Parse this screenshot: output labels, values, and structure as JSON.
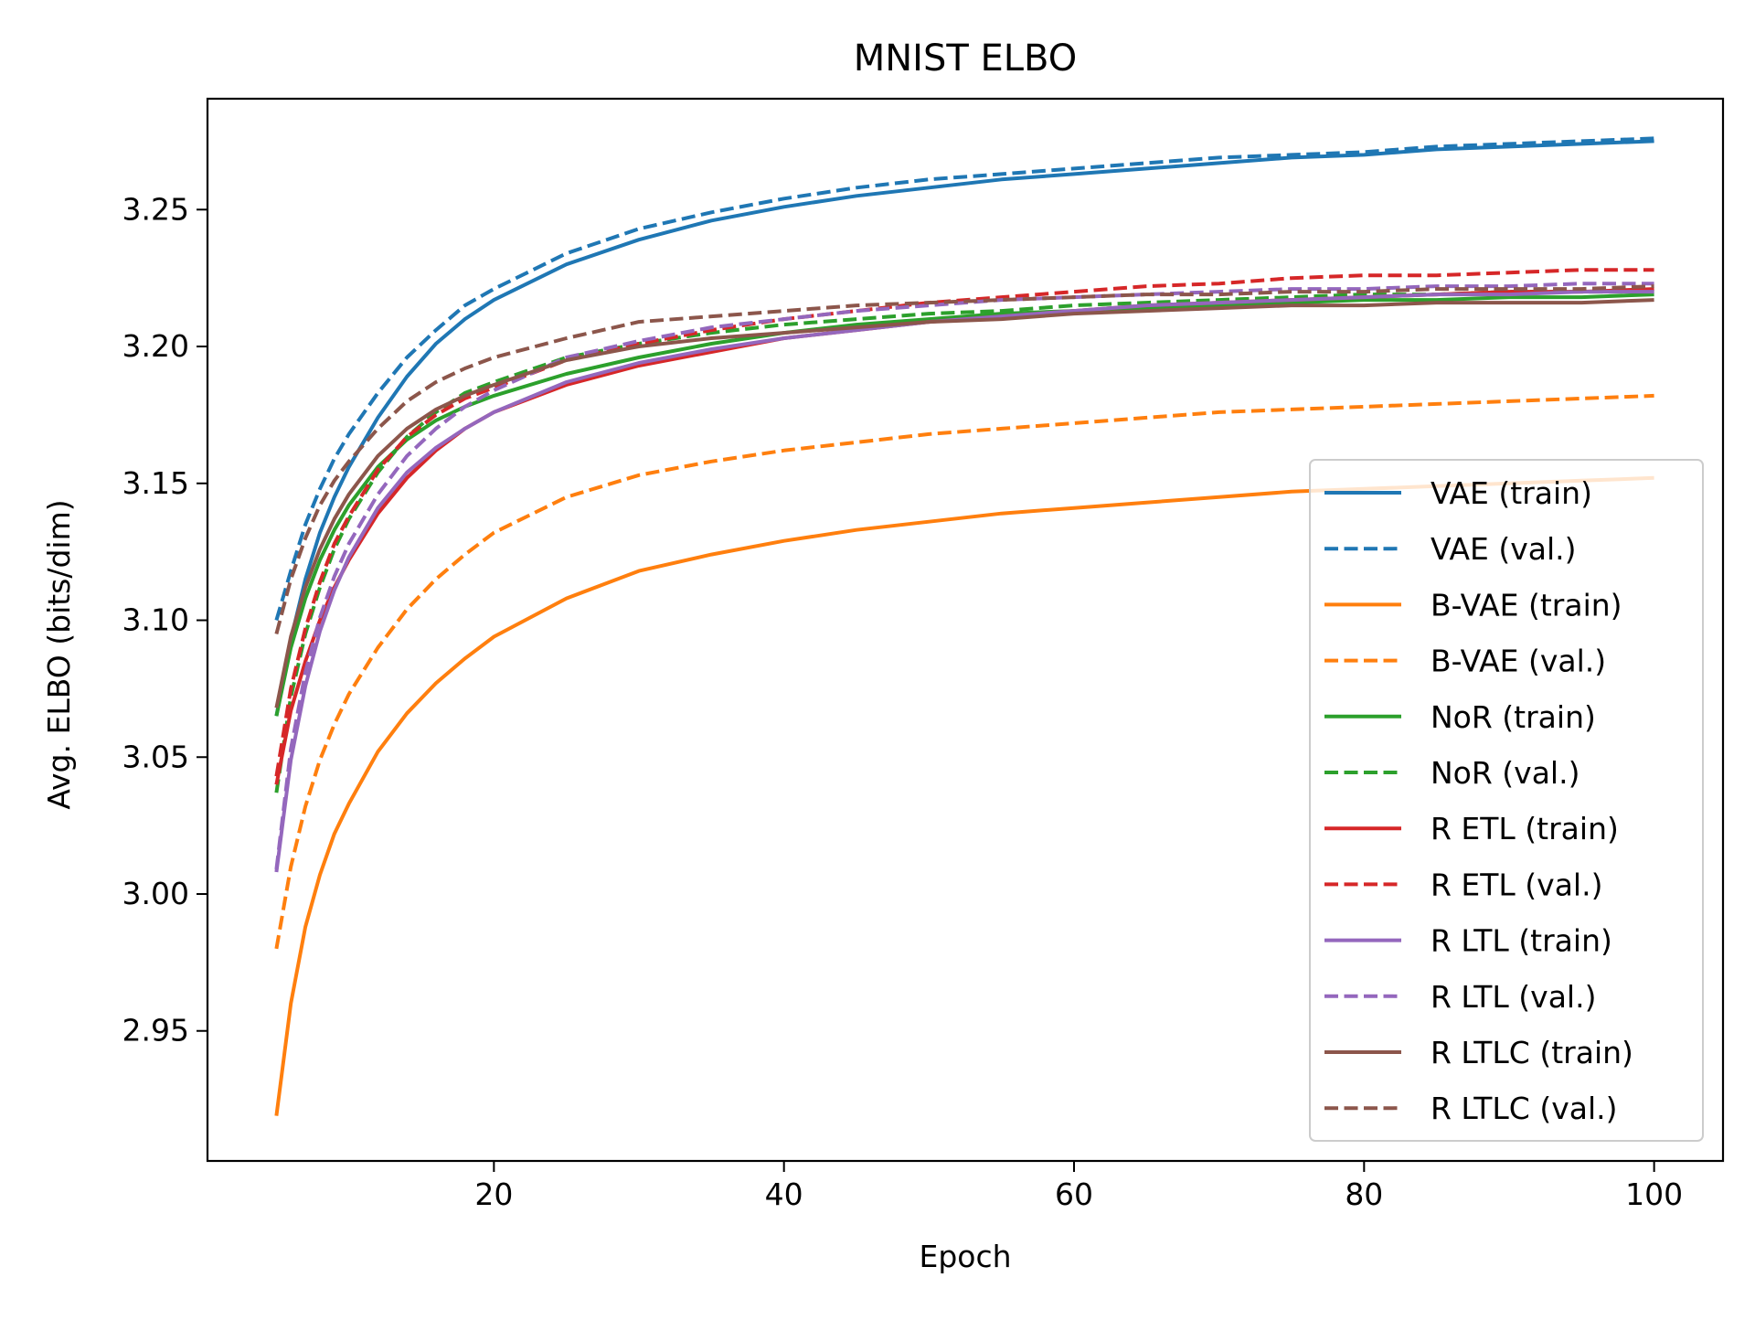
{
  "chart_data": {
    "type": "line",
    "title": "MNIST ELBO",
    "xlabel": "Epoch",
    "ylabel": "Avg. ELBO (bits/dim)",
    "xlim": [
      0.25,
      104.75
    ],
    "ylim": [
      2.9025,
      3.2905
    ],
    "xticks": [
      20,
      40,
      60,
      80,
      100
    ],
    "yticks": [
      2.95,
      3.0,
      3.05,
      3.1,
      3.15,
      3.2,
      3.25
    ],
    "xtick_labels": [
      "20",
      "40",
      "60",
      "80",
      "100"
    ],
    "ytick_labels": [
      "2.95",
      "3.00",
      "3.05",
      "3.10",
      "3.15",
      "3.20",
      "3.25"
    ],
    "grid": false,
    "legend_position": "center-right",
    "x": [
      5,
      6,
      7,
      8,
      9,
      10,
      12,
      14,
      16,
      18,
      20,
      25,
      30,
      35,
      40,
      45,
      50,
      55,
      60,
      65,
      70,
      75,
      80,
      85,
      90,
      95,
      100
    ],
    "series": [
      {
        "name": "VAE (train)",
        "color": "#1f77b4",
        "dash": "solid",
        "values": [
          3.065,
          3.093,
          3.115,
          3.132,
          3.145,
          3.156,
          3.174,
          3.189,
          3.201,
          3.21,
          3.217,
          3.23,
          3.239,
          3.246,
          3.251,
          3.255,
          3.258,
          3.261,
          3.263,
          3.265,
          3.267,
          3.269,
          3.27,
          3.272,
          3.273,
          3.274,
          3.275
        ]
      },
      {
        "name": "VAE (val.)",
        "color": "#1f77b4",
        "dash": "dashed",
        "values": [
          3.1,
          3.118,
          3.135,
          3.148,
          3.159,
          3.168,
          3.183,
          3.196,
          3.206,
          3.215,
          3.221,
          3.234,
          3.243,
          3.249,
          3.254,
          3.258,
          3.261,
          3.263,
          3.265,
          3.267,
          3.269,
          3.27,
          3.271,
          3.273,
          3.274,
          3.275,
          3.276
        ]
      },
      {
        "name": "B-VAE (train)",
        "color": "#ff7f0e",
        "dash": "solid",
        "values": [
          2.919,
          2.96,
          2.988,
          3.007,
          3.022,
          3.033,
          3.052,
          3.066,
          3.077,
          3.086,
          3.094,
          3.108,
          3.118,
          3.124,
          3.129,
          3.133,
          3.136,
          3.139,
          3.141,
          3.143,
          3.145,
          3.147,
          3.148,
          3.149,
          3.15,
          3.151,
          3.152
        ]
      },
      {
        "name": "B-VAE (val.)",
        "color": "#ff7f0e",
        "dash": "dashed",
        "values": [
          2.98,
          3.01,
          3.032,
          3.049,
          3.062,
          3.073,
          3.09,
          3.104,
          3.115,
          3.124,
          3.132,
          3.145,
          3.153,
          3.158,
          3.162,
          3.165,
          3.168,
          3.17,
          3.172,
          3.174,
          3.176,
          3.177,
          3.178,
          3.179,
          3.18,
          3.181,
          3.182
        ]
      },
      {
        "name": "NoR (train)",
        "color": "#2ca02c",
        "dash": "solid",
        "values": [
          3.065,
          3.09,
          3.108,
          3.122,
          3.133,
          3.142,
          3.156,
          3.166,
          3.173,
          3.178,
          3.182,
          3.19,
          3.196,
          3.201,
          3.205,
          3.208,
          3.21,
          3.212,
          3.213,
          3.214,
          3.215,
          3.216,
          3.217,
          3.217,
          3.218,
          3.218,
          3.219
        ]
      },
      {
        "name": "NoR (val.)",
        "color": "#2ca02c",
        "dash": "dashed",
        "values": [
          3.037,
          3.072,
          3.095,
          3.112,
          3.126,
          3.137,
          3.154,
          3.167,
          3.176,
          3.183,
          3.187,
          3.196,
          3.201,
          3.205,
          3.208,
          3.21,
          3.212,
          3.213,
          3.215,
          3.216,
          3.217,
          3.218,
          3.219,
          3.219,
          3.22,
          3.22,
          3.22
        ]
      },
      {
        "name": "R ETL (train)",
        "color": "#d62728",
        "dash": "solid",
        "values": [
          3.04,
          3.067,
          3.085,
          3.1,
          3.112,
          3.122,
          3.139,
          3.152,
          3.162,
          3.17,
          3.176,
          3.186,
          3.193,
          3.198,
          3.203,
          3.206,
          3.209,
          3.211,
          3.213,
          3.215,
          3.216,
          3.217,
          3.218,
          3.219,
          3.22,
          3.22,
          3.221
        ]
      },
      {
        "name": "R ETL (val.)",
        "color": "#d62728",
        "dash": "dashed",
        "values": [
          3.043,
          3.075,
          3.097,
          3.114,
          3.128,
          3.138,
          3.155,
          3.167,
          3.175,
          3.181,
          3.185,
          3.195,
          3.201,
          3.206,
          3.21,
          3.213,
          3.216,
          3.218,
          3.22,
          3.222,
          3.223,
          3.225,
          3.226,
          3.226,
          3.227,
          3.228,
          3.228
        ]
      },
      {
        "name": "R LTL (train)",
        "color": "#9467bd",
        "dash": "solid",
        "values": [
          3.008,
          3.049,
          3.076,
          3.096,
          3.111,
          3.123,
          3.141,
          3.154,
          3.163,
          3.17,
          3.176,
          3.187,
          3.194,
          3.199,
          3.203,
          3.206,
          3.209,
          3.211,
          3.213,
          3.215,
          3.216,
          3.217,
          3.218,
          3.219,
          3.219,
          3.22,
          3.22
        ]
      },
      {
        "name": "R LTL (val.)",
        "color": "#9467bd",
        "dash": "dashed",
        "values": [
          3.009,
          3.053,
          3.081,
          3.101,
          3.116,
          3.128,
          3.146,
          3.16,
          3.17,
          3.178,
          3.184,
          3.196,
          3.202,
          3.207,
          3.21,
          3.213,
          3.215,
          3.217,
          3.218,
          3.219,
          3.22,
          3.221,
          3.221,
          3.222,
          3.222,
          3.223,
          3.223
        ]
      },
      {
        "name": "R LTLC (train)",
        "color": "#8c564b",
        "dash": "solid",
        "values": [
          3.068,
          3.094,
          3.112,
          3.126,
          3.137,
          3.146,
          3.16,
          3.17,
          3.177,
          3.182,
          3.186,
          3.195,
          3.2,
          3.203,
          3.205,
          3.207,
          3.209,
          3.21,
          3.212,
          3.213,
          3.214,
          3.215,
          3.215,
          3.216,
          3.216,
          3.216,
          3.217
        ]
      },
      {
        "name": "R LTLC (val.)",
        "color": "#8c564b",
        "dash": "dashed",
        "values": [
          3.095,
          3.115,
          3.13,
          3.142,
          3.151,
          3.158,
          3.17,
          3.18,
          3.187,
          3.192,
          3.196,
          3.203,
          3.209,
          3.211,
          3.213,
          3.215,
          3.216,
          3.217,
          3.218,
          3.219,
          3.219,
          3.22,
          3.22,
          3.221,
          3.221,
          3.221,
          3.222
        ]
      }
    ]
  }
}
